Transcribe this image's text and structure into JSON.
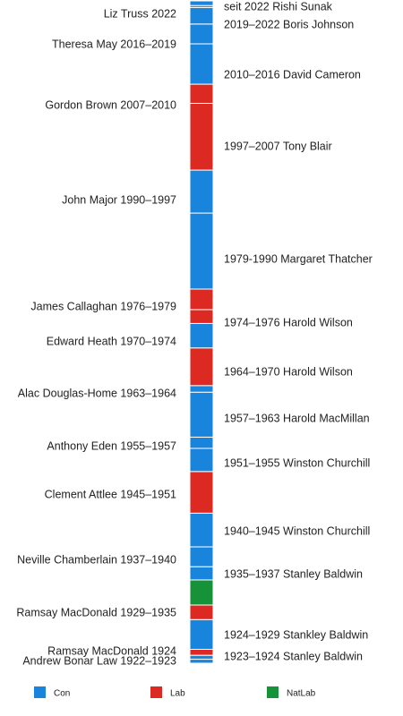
{
  "chart_data": {
    "type": "bar",
    "orientation": "vertical-timeline",
    "colors": {
      "Con": "#1884dc",
      "Lab": "#dc2a23",
      "NatLab": "#169238"
    },
    "legend": {
      "placement": "bottom",
      "items": [
        {
          "party": "Con",
          "label": "Con"
        },
        {
          "party": "Lab",
          "label": "Lab"
        },
        {
          "party": "NatLab",
          "label": "NatLab"
        }
      ]
    },
    "axis": {
      "start": 1922.8,
      "end": 2023
    },
    "segments": [
      {
        "party": "Con",
        "start": 1922.8,
        "end": 1923.4,
        "side": "left",
        "label": "Andrew Bonar Law 1922–1923"
      },
      {
        "party": "Con",
        "start": 1923.4,
        "end": 1924.0,
        "side": "right",
        "label": "1923–1924 Stanley Baldwin"
      },
      {
        "party": "Lab",
        "start": 1924.0,
        "end": 1924.9,
        "side": "left",
        "label": "Ramsay MacDonald 1924"
      },
      {
        "party": "Con",
        "start": 1924.9,
        "end": 1929.4,
        "side": "right",
        "label": "1924–1929 Stankley Baldwin"
      },
      {
        "party": "Lab",
        "start": 1929.4,
        "end": 1931.6,
        "side": "left",
        "label": "Ramsay MacDonald 1929–1935"
      },
      {
        "party": "NatLab",
        "start": 1931.6,
        "end": 1935.4,
        "side": "none",
        "label": ""
      },
      {
        "party": "Con",
        "start": 1935.4,
        "end": 1937.4,
        "side": "right",
        "label": "1935–1937 Stanley Baldwin"
      },
      {
        "party": "Con",
        "start": 1937.4,
        "end": 1940.4,
        "side": "left",
        "label": "Neville Chamberlain 1937–1940"
      },
      {
        "party": "Con",
        "start": 1940.4,
        "end": 1945.5,
        "side": "right",
        "label": "1940–1945 Winston Churchill"
      },
      {
        "party": "Lab",
        "start": 1945.5,
        "end": 1951.8,
        "side": "left",
        "label": "Clement Attlee 1945–1951"
      },
      {
        "party": "Con",
        "start": 1951.8,
        "end": 1955.3,
        "side": "right",
        "label": "1951–1955 Winston Churchill"
      },
      {
        "party": "Con",
        "start": 1955.3,
        "end": 1957.0,
        "side": "left",
        "label": "Anthony Eden 1955–1957"
      },
      {
        "party": "Con",
        "start": 1957.0,
        "end": 1963.8,
        "side": "right",
        "label": "1957–1963 Harold MacMillan"
      },
      {
        "party": "Con",
        "start": 1963.8,
        "end": 1964.8,
        "side": "left",
        "label": "Alac Douglas-Home 1963–1964"
      },
      {
        "party": "Lab",
        "start": 1964.8,
        "end": 1970.5,
        "side": "right",
        "label": "1964–1970 Harold Wilson"
      },
      {
        "party": "Con",
        "start": 1970.5,
        "end": 1974.2,
        "side": "left",
        "label": "Edward Heath 1970–1974"
      },
      {
        "party": "Lab",
        "start": 1974.2,
        "end": 1976.3,
        "side": "right",
        "label": "1974–1976 Harold Wilson"
      },
      {
        "party": "Lab",
        "start": 1976.3,
        "end": 1979.4,
        "side": "left",
        "label": "James Callaghan 1976–1979"
      },
      {
        "party": "Con",
        "start": 1979.4,
        "end": 1990.9,
        "side": "right",
        "label": "1979-1990 Margaret Thatcher"
      },
      {
        "party": "Con",
        "start": 1990.9,
        "end": 1997.4,
        "side": "left",
        "label": "John Major 1990–1997"
      },
      {
        "party": "Lab",
        "start": 1997.4,
        "end": 2007.5,
        "side": "right",
        "label": "1997–2007 Tony Blair"
      },
      {
        "party": "Lab",
        "start": 2007.5,
        "end": 2010.4,
        "side": "left",
        "label": "Gordon Brown 2007–2010"
      },
      {
        "party": "Con",
        "start": 2010.4,
        "end": 2016.5,
        "side": "right",
        "label": "2010–2016 David Cameron"
      },
      {
        "party": "Con",
        "start": 2016.5,
        "end": 2019.5,
        "side": "left",
        "label": "Theresa May 2016–2019"
      },
      {
        "party": "Con",
        "start": 2019.5,
        "end": 2022.0,
        "side": "right",
        "label": "2019–2022 Boris Johnson"
      },
      {
        "party": "Con",
        "start": 2022.0,
        "end": 2022.3,
        "side": "left",
        "label": "Liz Truss 2022"
      },
      {
        "party": "Con",
        "start": 2022.3,
        "end": 2023.0,
        "side": "right",
        "label": "seit 2022 Rishi Sunak"
      }
    ]
  }
}
